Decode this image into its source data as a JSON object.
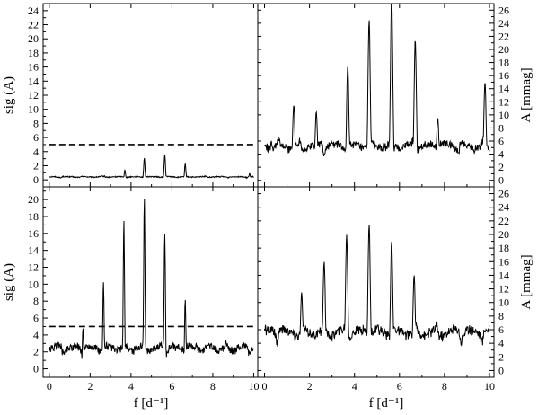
{
  "chart_data": [
    {
      "panel": "top-left",
      "type": "line",
      "ylabel": "sig (A)",
      "xlim": [
        -0.3,
        10.2
      ],
      "ylim": [
        -1,
        25
      ],
      "x_ticks": [
        "0",
        "2",
        "4",
        "6",
        "8",
        "10"
      ],
      "y_ticks": [
        "0",
        "2",
        "4",
        "6",
        "8",
        "10",
        "12",
        "14",
        "16",
        "18",
        "20",
        "22",
        "24"
      ],
      "threshold": 5,
      "peaks": [
        [
          0.9,
          0.5
        ],
        [
          1.7,
          0.3
        ],
        [
          2.7,
          0.6
        ],
        [
          3.7,
          1.4
        ],
        [
          4.65,
          3.1
        ],
        [
          5.65,
          3.6
        ],
        [
          6.65,
          2.3
        ],
        [
          7.4,
          0.5
        ],
        [
          8.7,
          0.4
        ],
        [
          9.8,
          0.9
        ]
      ],
      "baseline": 0.15,
      "noise": 0.35,
      "sharp": true
    },
    {
      "panel": "top-right",
      "type": "line",
      "ylabel": "A [mmag]",
      "xlim": [
        -0.3,
        10.2
      ],
      "ylim": [
        -1,
        27
      ],
      "x_ticks": [
        "0",
        "2",
        "4",
        "6",
        "8",
        "10"
      ],
      "y_ticks": [
        "0",
        "2",
        "4",
        "6",
        "8",
        "10",
        "12",
        "14",
        "16",
        "18",
        "20",
        "22",
        "24",
        "26"
      ],
      "peaks": [
        [
          0.3,
          4.5
        ],
        [
          1.3,
          10
        ],
        [
          2.3,
          9
        ],
        [
          3.7,
          16
        ],
        [
          4.65,
          23
        ],
        [
          5.65,
          27
        ],
        [
          6.7,
          20
        ],
        [
          7.7,
          8
        ],
        [
          8.5,
          2.5
        ],
        [
          9.8,
          13.5
        ]
      ],
      "baseline": 3,
      "noise": 3,
      "sharp": false
    },
    {
      "panel": "bottom-left",
      "type": "line",
      "ylabel": "sig (A)",
      "xlim": [
        -0.3,
        10.2
      ],
      "ylim": [
        -1,
        21.5
      ],
      "x_ticks": [
        "0",
        "2",
        "4",
        "6",
        "8",
        "10"
      ],
      "y_ticks": [
        "0",
        "2",
        "4",
        "6",
        "8",
        "10",
        "12",
        "14",
        "16",
        "18",
        "20"
      ],
      "threshold": 5,
      "peaks": [
        [
          1.65,
          4.8
        ],
        [
          2.65,
          10.3
        ],
        [
          3.65,
          17.6
        ],
        [
          4.65,
          20.2
        ],
        [
          5.65,
          16
        ],
        [
          6.65,
          8.2
        ]
      ],
      "baseline": 0.8,
      "noise": 2.2,
      "sharp": true
    },
    {
      "panel": "bottom-right",
      "type": "line",
      "ylabel": "A [mmag]",
      "xlim": [
        -0.3,
        10.2
      ],
      "ylim": [
        -1,
        27
      ],
      "x_ticks": [
        "0",
        "2",
        "4",
        "6",
        "8",
        "10"
      ],
      "y_ticks": [
        "0",
        "2",
        "4",
        "6",
        "8",
        "10",
        "12",
        "14",
        "16",
        "18",
        "20",
        "22",
        "24",
        "26"
      ],
      "peaks": [
        [
          1.65,
          10
        ],
        [
          2.65,
          14.5
        ],
        [
          3.65,
          18.5
        ],
        [
          4.65,
          20
        ],
        [
          5.65,
          17.5
        ],
        [
          6.65,
          12.5
        ]
      ],
      "baseline": 3,
      "noise": 3.5,
      "sharp": false
    }
  ],
  "xlabel": "f [d⁻¹]",
  "colors": {
    "line": "#000000",
    "frame": "#000000",
    "background": "#ffffff"
  }
}
